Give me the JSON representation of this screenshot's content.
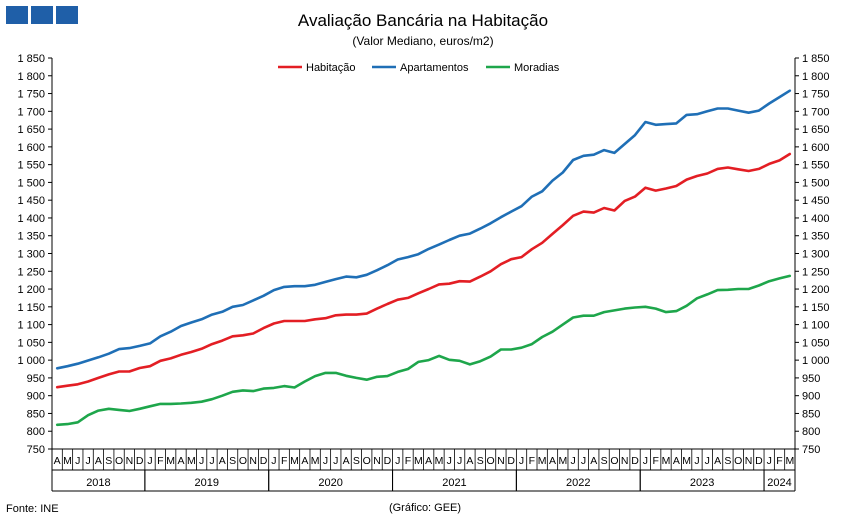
{
  "brand": {
    "logo_color": "#1f5fa8"
  },
  "footer": {
    "source": "Fonte: INE",
    "credit": "(Gráfico: GEE)"
  },
  "chart_data": {
    "type": "line",
    "title": "Avaliação Bancária na Habitação",
    "subtitle": "(Valor Mediano, euros/m2)",
    "legend_position": "top-center",
    "grid": false,
    "ylim": [
      750,
      1850
    ],
    "ystep": 50,
    "y_ticks": [
      "750",
      "800",
      "850",
      "900",
      "950",
      "1 000",
      "1 050",
      "1 100",
      "1 150",
      "1 200",
      "1 250",
      "1 300",
      "1 350",
      "1 400",
      "1 450",
      "1 500",
      "1 550",
      "1 600",
      "1 650",
      "1 700",
      "1 750",
      "1 800",
      "1 850"
    ],
    "categories": [
      "A",
      "M",
      "J",
      "J",
      "A",
      "S",
      "O",
      "N",
      "D",
      "J",
      "F",
      "M",
      "A",
      "M",
      "J",
      "J",
      "A",
      "S",
      "O",
      "N",
      "D",
      "J",
      "F",
      "M",
      "A",
      "M",
      "J",
      "J",
      "A",
      "S",
      "O",
      "N",
      "D",
      "J",
      "F",
      "M",
      "A",
      "M",
      "J",
      "J",
      "A",
      "S",
      "O",
      "N",
      "D",
      "J",
      "F",
      "M",
      "A",
      "M",
      "J",
      "J",
      "A",
      "S",
      "O",
      "N",
      "D",
      "J",
      "F",
      "M",
      "A",
      "M",
      "J",
      "J",
      "A",
      "S",
      "O",
      "N",
      "D",
      "J",
      "F",
      "M"
    ],
    "years": [
      {
        "label": "2018",
        "start": 0,
        "end": 9
      },
      {
        "label": "2019",
        "start": 9,
        "end": 21
      },
      {
        "label": "2020",
        "start": 21,
        "end": 33
      },
      {
        "label": "2021",
        "start": 33,
        "end": 45
      },
      {
        "label": "2022",
        "start": 45,
        "end": 57
      },
      {
        "label": "2023",
        "start": 57,
        "end": 69
      },
      {
        "label": "2024",
        "start": 69,
        "end": 72
      }
    ],
    "series": [
      {
        "name": "Habitação",
        "color": "#e31e24",
        "values": [
          924,
          928,
          932,
          940,
          950,
          960,
          968,
          968,
          978,
          983,
          998,
          1005,
          1015,
          1023,
          1032,
          1045,
          1055,
          1067,
          1070,
          1075,
          1090,
          1103,
          1110,
          1110,
          1110,
          1115,
          1118,
          1126,
          1128,
          1128,
          1131,
          1145,
          1158,
          1170,
          1175,
          1188,
          1200,
          1213,
          1215,
          1222,
          1221,
          1235,
          1250,
          1270,
          1284,
          1290,
          1312,
          1330,
          1355,
          1380,
          1406,
          1418,
          1415,
          1428,
          1421,
          1448,
          1460,
          1485,
          1477,
          1483,
          1490,
          1508,
          1518,
          1525,
          1538,
          1542,
          1537,
          1532,
          1538,
          1552,
          1562,
          1580
        ]
      },
      {
        "name": "Apartamentos",
        "color": "#1f6fb6",
        "values": [
          977,
          983,
          990,
          999,
          1008,
          1018,
          1031,
          1034,
          1040,
          1047,
          1067,
          1080,
          1096,
          1106,
          1115,
          1128,
          1136,
          1150,
          1155,
          1168,
          1181,
          1197,
          1206,
          1208,
          1208,
          1212,
          1220,
          1228,
          1235,
          1233,
          1240,
          1253,
          1267,
          1283,
          1290,
          1298,
          1313,
          1325,
          1338,
          1350,
          1356,
          1370,
          1385,
          1402,
          1418,
          1433,
          1460,
          1475,
          1505,
          1528,
          1563,
          1575,
          1578,
          1591,
          1583,
          1608,
          1633,
          1670,
          1662,
          1664,
          1666,
          1690,
          1692,
          1700,
          1708,
          1708,
          1702,
          1696,
          1702,
          1722,
          1740,
          1758
        ]
      },
      {
        "name": "Moradias",
        "color": "#1ea64b",
        "values": [
          818,
          820,
          825,
          845,
          858,
          863,
          860,
          857,
          863,
          870,
          877,
          877,
          878,
          880,
          883,
          890,
          900,
          911,
          915,
          913,
          920,
          922,
          927,
          923,
          940,
          955,
          964,
          964,
          956,
          950,
          945,
          953,
          955,
          967,
          975,
          995,
          1000,
          1012,
          1001,
          998,
          988,
          997,
          1010,
          1030,
          1030,
          1035,
          1045,
          1065,
          1080,
          1100,
          1120,
          1125,
          1125,
          1135,
          1140,
          1145,
          1148,
          1150,
          1145,
          1135,
          1138,
          1153,
          1174,
          1185,
          1197,
          1198,
          1200,
          1200,
          1210,
          1222,
          1230,
          1237
        ]
      }
    ]
  }
}
